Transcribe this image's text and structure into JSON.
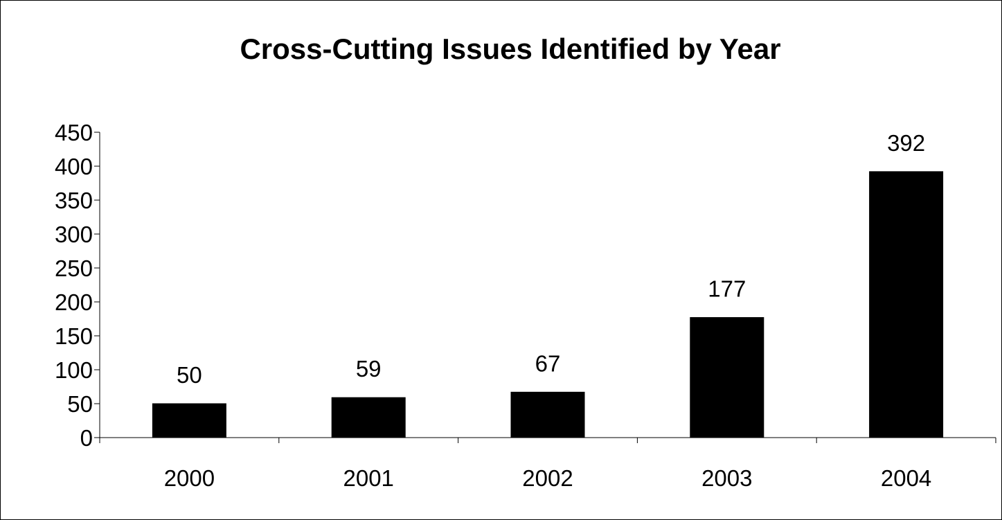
{
  "chart_data": {
    "type": "bar",
    "title": "Cross-Cutting Issues Identified by Year",
    "xlabel": "",
    "ylabel": "",
    "categories": [
      "2000",
      "2001",
      "2002",
      "2003",
      "2004"
    ],
    "values": [
      50,
      59,
      67,
      177,
      392
    ],
    "data_labels": [
      "50",
      "59",
      "67",
      "177",
      "392"
    ],
    "ylim": [
      0,
      450
    ],
    "y_ticks": [
      0,
      50,
      100,
      150,
      200,
      250,
      300,
      350,
      400,
      450
    ],
    "grid": false,
    "legend": "none",
    "bar_color": "#000000"
  }
}
